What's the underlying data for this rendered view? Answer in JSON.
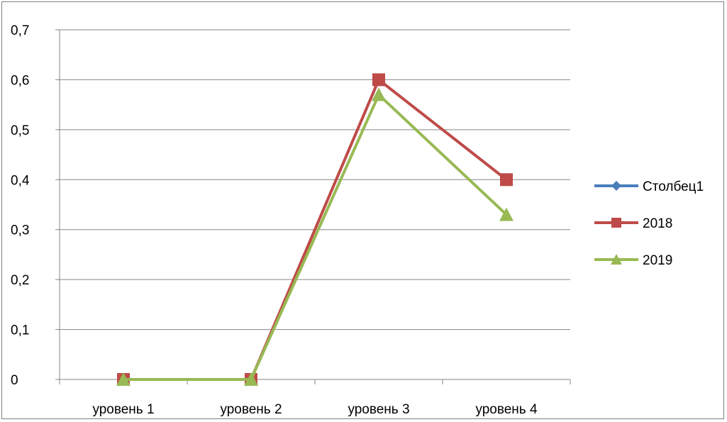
{
  "chart_data": {
    "type": "line",
    "title": "",
    "xlabel": "",
    "ylabel": "",
    "categories": [
      "уровень 1",
      "уровень 2",
      "уровень 3",
      "уровень 4"
    ],
    "ylim": [
      0,
      0.7
    ],
    "yticks": [
      0,
      0.1,
      0.2,
      0.3,
      0.4,
      0.5,
      0.6,
      0.7
    ],
    "ytick_labels": [
      "0",
      "0,1",
      "0,2",
      "0,3",
      "0,4",
      "0,5",
      "0,6",
      "0,7"
    ],
    "grid": true,
    "legend_position": "right",
    "series": [
      {
        "name": "Столбец1",
        "values": [
          null,
          null,
          null,
          null
        ],
        "color": "#4a7ebb",
        "marker": "diamond"
      },
      {
        "name": "2018",
        "values": [
          0,
          0,
          0.6,
          0.4
        ],
        "color": "#be4b48",
        "marker": "square"
      },
      {
        "name": "2019",
        "values": [
          0,
          0,
          0.57,
          0.33
        ],
        "color": "#98b954",
        "marker": "triangle"
      }
    ]
  }
}
